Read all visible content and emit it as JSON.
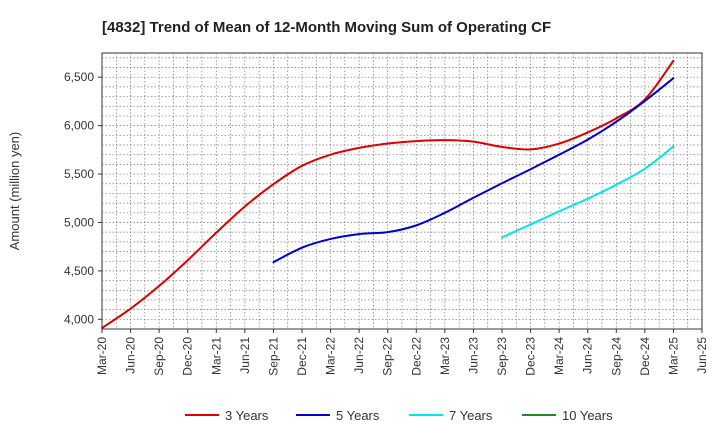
{
  "chart_data": {
    "type": "line",
    "title": "[4832]  Trend of Mean of 12-Month Moving Sum of Operating CF",
    "xlabel": "",
    "ylabel": "Amount (million yen)",
    "x_ticks": [
      "Mar-20",
      "Jun-20",
      "Sep-20",
      "Dec-20",
      "Mar-21",
      "Jun-21",
      "Sep-21",
      "Dec-21",
      "Mar-22",
      "Jun-22",
      "Sep-22",
      "Dec-22",
      "Mar-23",
      "Jun-23",
      "Sep-23",
      "Dec-23",
      "Mar-24",
      "Jun-24",
      "Sep-24",
      "Dec-24",
      "Mar-25",
      "Jun-25"
    ],
    "y_ticks": [
      4000,
      4500,
      5000,
      5500,
      6000,
      6500
    ],
    "y_tick_labels": [
      "4,000",
      "4,500",
      "5,000",
      "5,500",
      "6,000",
      "6,500"
    ],
    "ylim": [
      3900,
      6750
    ],
    "grid": true,
    "legend_position": "bottom",
    "series": [
      {
        "name": "3 Years",
        "color": "#dd0000",
        "points": [
          [
            0,
            3910
          ],
          [
            1,
            4110
          ],
          [
            2,
            4345
          ],
          [
            3,
            4610
          ],
          [
            4,
            4895
          ],
          [
            5,
            5165
          ],
          [
            6,
            5395
          ],
          [
            7,
            5585
          ],
          [
            8,
            5700
          ],
          [
            9,
            5770
          ],
          [
            10,
            5815
          ],
          [
            11,
            5840
          ],
          [
            12,
            5850
          ],
          [
            13,
            5835
          ],
          [
            14,
            5780
          ],
          [
            15,
            5755
          ],
          [
            16,
            5815
          ],
          [
            17,
            5930
          ],
          [
            18,
            6075
          ],
          [
            19,
            6270
          ],
          [
            20,
            6670
          ]
        ]
      },
      {
        "name": "5 Years",
        "color": "#0000cc",
        "points": [
          [
            6,
            4590
          ],
          [
            7,
            4740
          ],
          [
            8,
            4830
          ],
          [
            9,
            4880
          ],
          [
            10,
            4900
          ],
          [
            11,
            4970
          ],
          [
            12,
            5100
          ],
          [
            13,
            5255
          ],
          [
            14,
            5405
          ],
          [
            15,
            5550
          ],
          [
            16,
            5700
          ],
          [
            17,
            5855
          ],
          [
            18,
            6040
          ],
          [
            19,
            6255
          ],
          [
            20,
            6490
          ]
        ]
      },
      {
        "name": "7 Years",
        "color": "#00e5ee",
        "points": [
          [
            14,
            4845
          ],
          [
            15,
            4980
          ],
          [
            16,
            5115
          ],
          [
            17,
            5245
          ],
          [
            18,
            5390
          ],
          [
            19,
            5555
          ],
          [
            20,
            5785
          ]
        ]
      },
      {
        "name": "10 Years",
        "color": "#228b22",
        "points": []
      }
    ]
  }
}
